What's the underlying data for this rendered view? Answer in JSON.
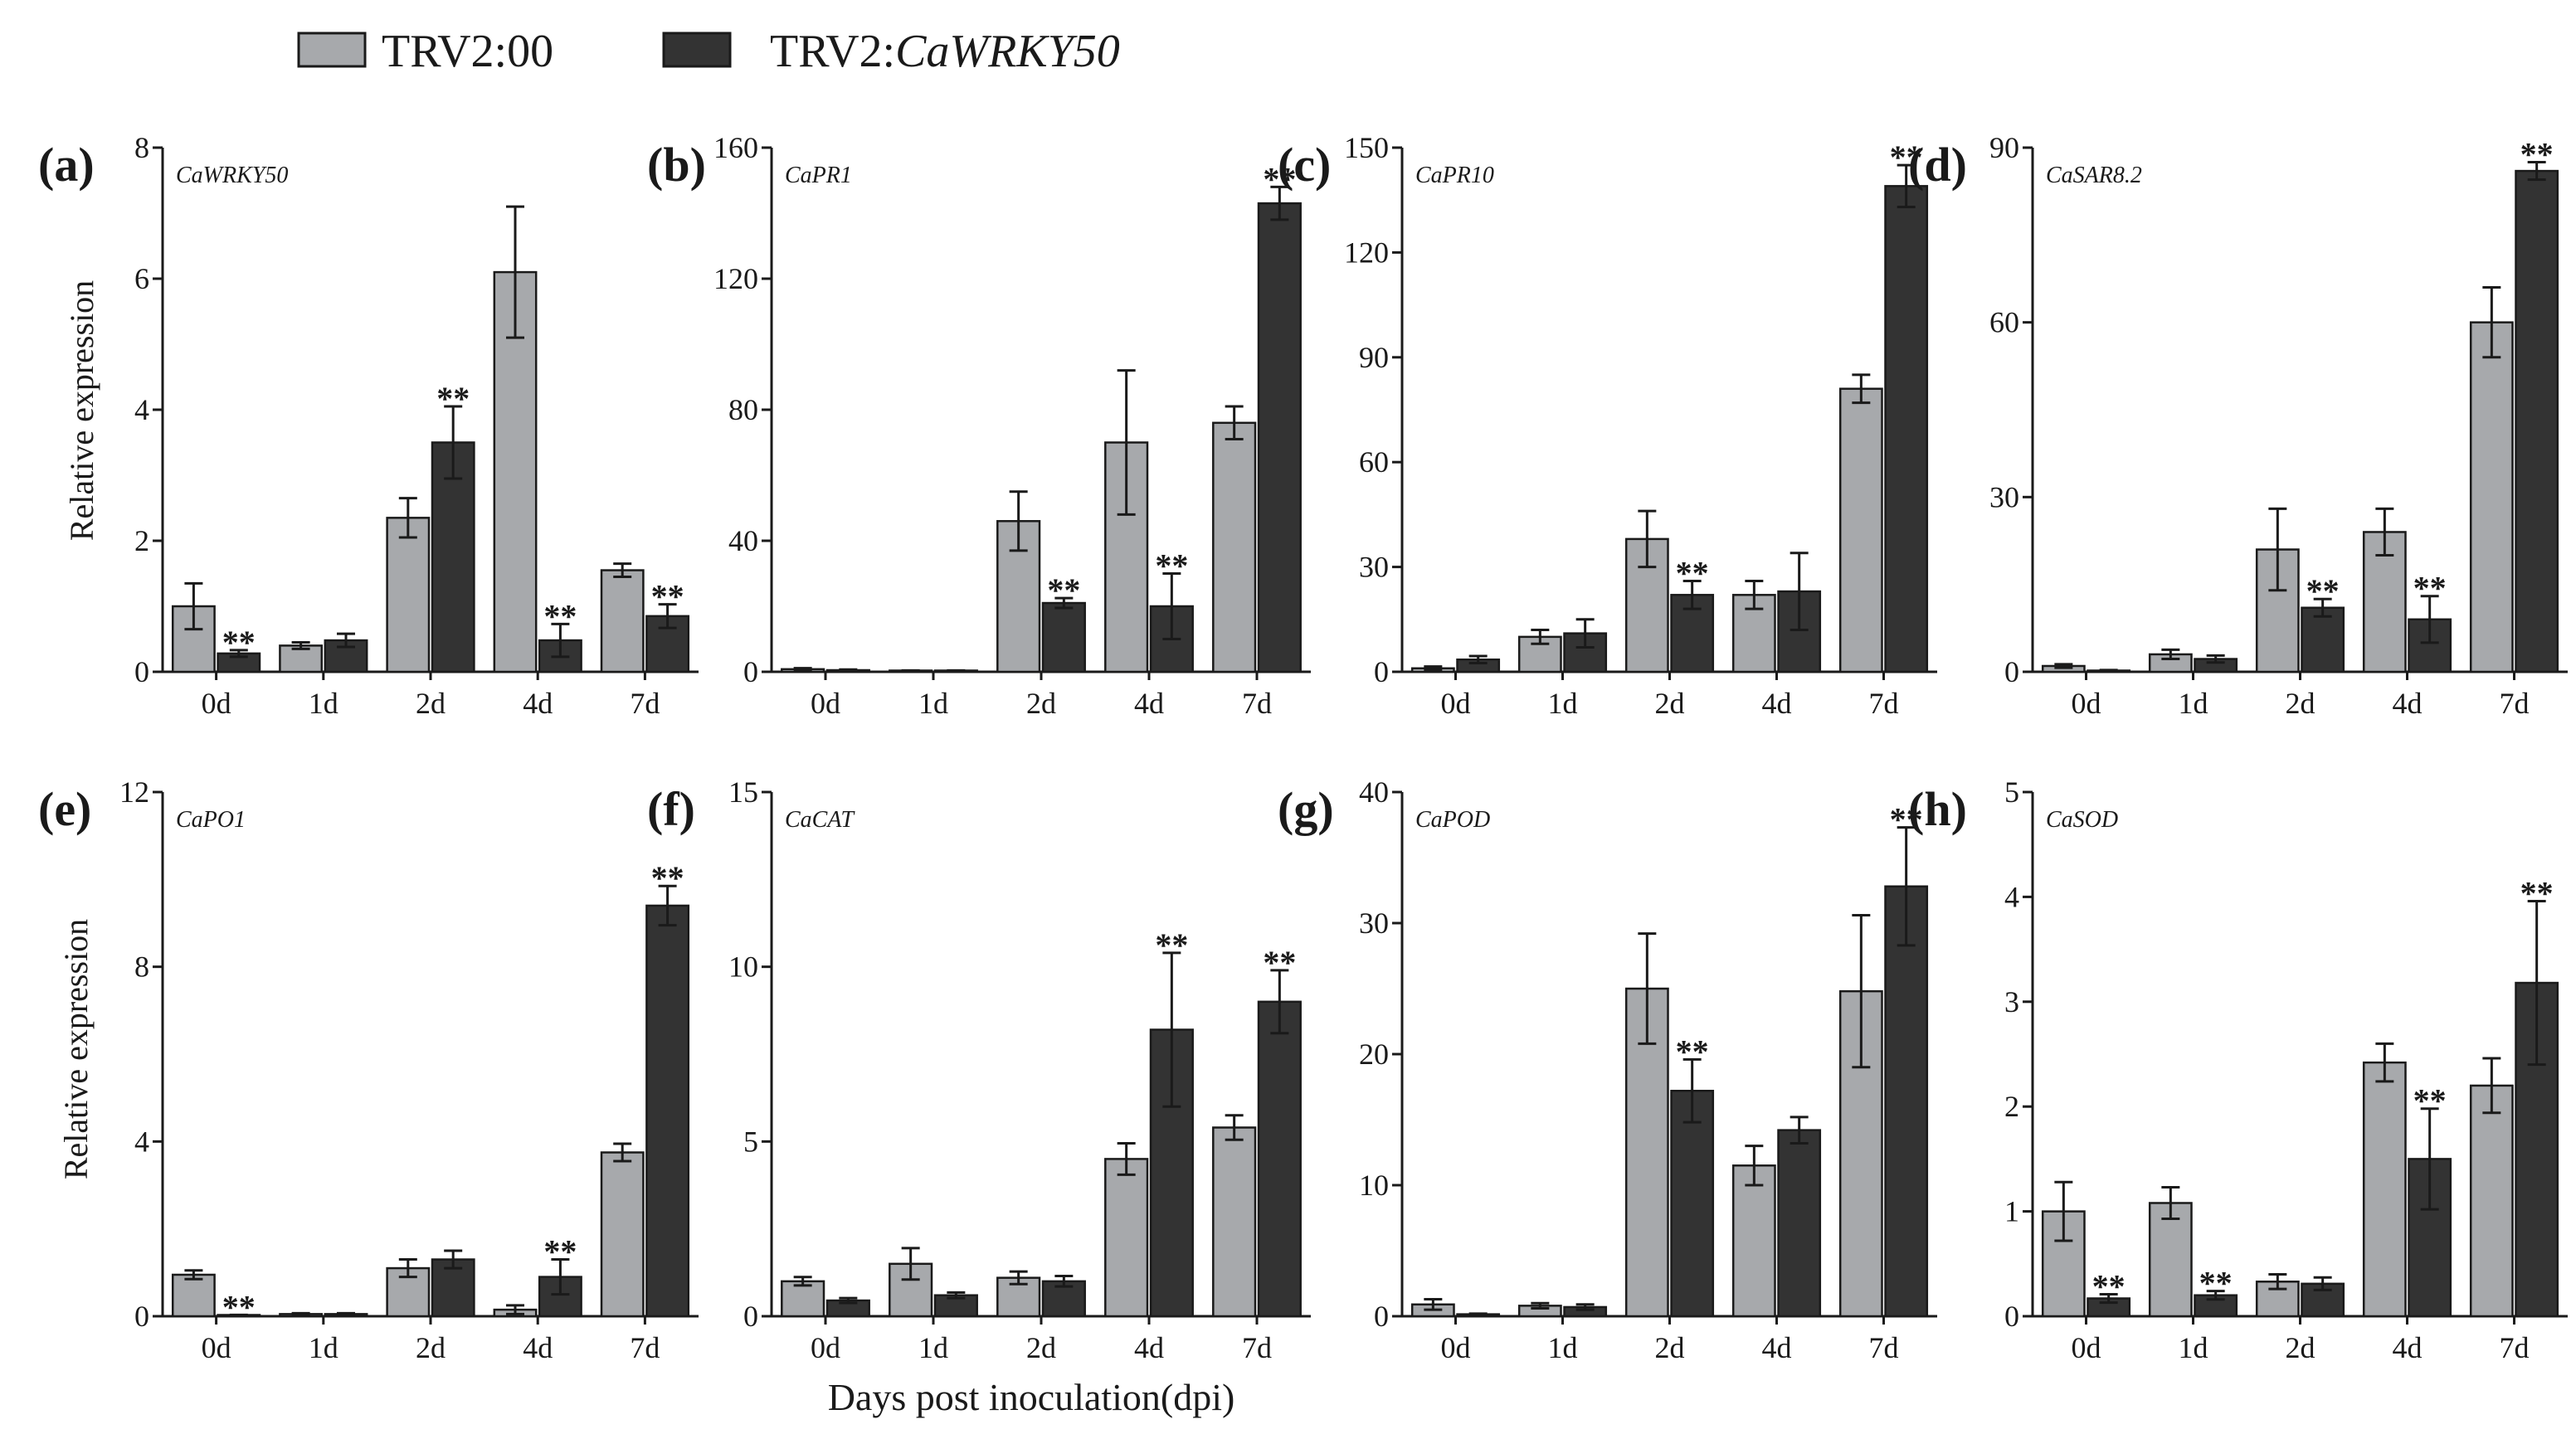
{
  "legend": {
    "series": [
      {
        "label": "TRV2:00",
        "italic_part": "",
        "color": "#a7a9ac"
      },
      {
        "label": "TRV2:",
        "italic_part": "CaWRKY50",
        "color": "#333333"
      }
    ]
  },
  "x_axis_title": "Days post inoculation(dpi)",
  "y_axis_title": "Relative expression",
  "chart_data": [
    {
      "type": "bar",
      "panel": "(a)",
      "gene": "CaWRKY50",
      "ylabel": "Relative expression",
      "ylim": [
        0,
        8
      ],
      "ticks": [
        0,
        2,
        4,
        6,
        8
      ],
      "categories": [
        "0d",
        "1d",
        "2d",
        "4d",
        "7d"
      ],
      "series": [
        {
          "name": "TRV2:00",
          "values": [
            1.0,
            0.4,
            2.35,
            6.1,
            1.55
          ],
          "errors": [
            0.35,
            0.05,
            0.3,
            1.0,
            0.1
          ],
          "sig": [
            "",
            "",
            "",
            "",
            ""
          ]
        },
        {
          "name": "TRV2:CaWRKY50",
          "values": [
            0.28,
            0.48,
            3.5,
            0.48,
            0.85
          ],
          "errors": [
            0.05,
            0.1,
            0.55,
            0.25,
            0.18
          ],
          "sig": [
            "**",
            "",
            "**",
            "**",
            "**"
          ]
        }
      ]
    },
    {
      "type": "bar",
      "panel": "(b)",
      "gene": "CaPR1",
      "ylabel": "",
      "ylim": [
        0,
        160
      ],
      "ticks": [
        0,
        40,
        80,
        120,
        160
      ],
      "categories": [
        "0d",
        "1d",
        "2d",
        "4d",
        "7d"
      ],
      "series": [
        {
          "name": "TRV2:00",
          "values": [
            0.8,
            0.3,
            46,
            70,
            76
          ],
          "errors": [
            0.3,
            0.1,
            9,
            22,
            5
          ],
          "sig": [
            "",
            "",
            "",
            "",
            ""
          ]
        },
        {
          "name": "TRV2:CaWRKY50",
          "values": [
            0.5,
            0.3,
            21,
            20,
            143
          ],
          "errors": [
            0.2,
            0.1,
            1.5,
            10,
            5
          ],
          "sig": [
            "",
            "",
            "**",
            "**",
            "**"
          ]
        }
      ]
    },
    {
      "type": "bar",
      "panel": "(c)",
      "gene": "CaPR10",
      "ylabel": "",
      "ylim": [
        0,
        150
      ],
      "ticks": [
        0,
        30,
        60,
        90,
        120,
        150
      ],
      "categories": [
        "0d",
        "1d",
        "2d",
        "4d",
        "7d"
      ],
      "series": [
        {
          "name": "TRV2:00",
          "values": [
            1,
            10,
            38,
            22,
            81
          ],
          "errors": [
            0.5,
            2,
            8,
            4,
            4
          ],
          "sig": [
            "",
            "",
            "",
            "",
            ""
          ]
        },
        {
          "name": "TRV2:CaWRKY50",
          "values": [
            3.5,
            11,
            22,
            23,
            139
          ],
          "errors": [
            1,
            4,
            4,
            11,
            6
          ],
          "sig": [
            "",
            "",
            "**",
            "",
            "**"
          ]
        }
      ]
    },
    {
      "type": "bar",
      "panel": "(d)",
      "gene": "CaSAR8.2",
      "ylabel": "",
      "ylim": [
        0,
        90
      ],
      "ticks": [
        0,
        30,
        60,
        90
      ],
      "categories": [
        "0d",
        "1d",
        "2d",
        "4d",
        "7d"
      ],
      "series": [
        {
          "name": "TRV2:00",
          "values": [
            1,
            3,
            21,
            24,
            60
          ],
          "errors": [
            0.3,
            0.8,
            7,
            4,
            6
          ],
          "sig": [
            "",
            "",
            "",
            "",
            ""
          ]
        },
        {
          "name": "TRV2:CaWRKY50",
          "values": [
            0.2,
            2.2,
            11,
            9,
            86
          ],
          "errors": [
            0.1,
            0.6,
            1.5,
            4,
            1.5
          ],
          "sig": [
            "",
            "",
            "**",
            "**",
            "**"
          ]
        }
      ]
    },
    {
      "type": "bar",
      "panel": "(e)",
      "gene": "CaPO1",
      "ylabel": "Relative expression",
      "ylim": [
        0,
        12
      ],
      "ticks": [
        0,
        4,
        8,
        12
      ],
      "categories": [
        "0d",
        "1d",
        "2d",
        "4d",
        "7d"
      ],
      "series": [
        {
          "name": "TRV2:00",
          "values": [
            0.95,
            0.05,
            1.1,
            0.15,
            3.75
          ],
          "errors": [
            0.1,
            0.02,
            0.2,
            0.1,
            0.2
          ],
          "sig": [
            "",
            "",
            "",
            "",
            ""
          ]
        },
        {
          "name": "TRV2:CaWRKY50",
          "values": [
            0.02,
            0.05,
            1.3,
            0.9,
            9.4
          ],
          "errors": [
            0.01,
            0.02,
            0.2,
            0.4,
            0.45
          ],
          "sig": [
            "**",
            "",
            "",
            "**",
            "**"
          ]
        }
      ]
    },
    {
      "type": "bar",
      "panel": "(f)",
      "gene": "CaCAT",
      "ylabel": "",
      "ylim": [
        0,
        15
      ],
      "ticks": [
        0,
        5,
        10,
        15
      ],
      "categories": [
        "0d",
        "1d",
        "2d",
        "4d",
        "7d"
      ],
      "series": [
        {
          "name": "TRV2:00",
          "values": [
            1.0,
            1.5,
            1.1,
            4.5,
            5.4
          ],
          "errors": [
            0.12,
            0.45,
            0.18,
            0.45,
            0.35
          ],
          "sig": [
            "",
            "",
            "",
            "",
            ""
          ]
        },
        {
          "name": "TRV2:CaWRKY50",
          "values": [
            0.45,
            0.6,
            1.0,
            8.2,
            9.0
          ],
          "errors": [
            0.07,
            0.08,
            0.15,
            2.2,
            0.9
          ],
          "sig": [
            "",
            "",
            "",
            "**",
            "**"
          ]
        }
      ]
    },
    {
      "type": "bar",
      "panel": "(g)",
      "gene": "CaPOD",
      "ylabel": "",
      "ylim": [
        0,
        40
      ],
      "ticks": [
        0,
        10,
        20,
        30,
        40
      ],
      "categories": [
        "0d",
        "1d",
        "2d",
        "4d",
        "7d"
      ],
      "series": [
        {
          "name": "TRV2:00",
          "values": [
            0.9,
            0.8,
            25,
            11.5,
            24.8
          ],
          "errors": [
            0.4,
            0.2,
            4.2,
            1.5,
            5.8
          ],
          "sig": [
            "",
            "",
            "",
            "",
            ""
          ]
        },
        {
          "name": "TRV2:CaWRKY50",
          "values": [
            0.15,
            0.7,
            17.2,
            14.2,
            32.8
          ],
          "errors": [
            0.05,
            0.2,
            2.4,
            1,
            4.5
          ],
          "sig": [
            "",
            "",
            "**",
            "",
            "**"
          ]
        }
      ]
    },
    {
      "type": "bar",
      "panel": "(h)",
      "gene": "CaSOD",
      "ylabel": "",
      "ylim": [
        0,
        5
      ],
      "ticks": [
        0,
        1,
        2,
        3,
        4,
        5
      ],
      "categories": [
        "0d",
        "1d",
        "2d",
        "4d",
        "7d"
      ],
      "series": [
        {
          "name": "TRV2:00",
          "values": [
            1.0,
            1.08,
            0.33,
            2.42,
            2.2
          ],
          "errors": [
            0.28,
            0.15,
            0.07,
            0.18,
            0.26
          ],
          "sig": [
            "",
            "",
            "",
            "",
            ""
          ]
        },
        {
          "name": "TRV2:CaWRKY50",
          "values": [
            0.17,
            0.2,
            0.31,
            1.5,
            3.18
          ],
          "errors": [
            0.04,
            0.04,
            0.06,
            0.48,
            0.78
          ],
          "sig": [
            "**",
            "**",
            "",
            "**",
            "**"
          ]
        }
      ]
    }
  ]
}
